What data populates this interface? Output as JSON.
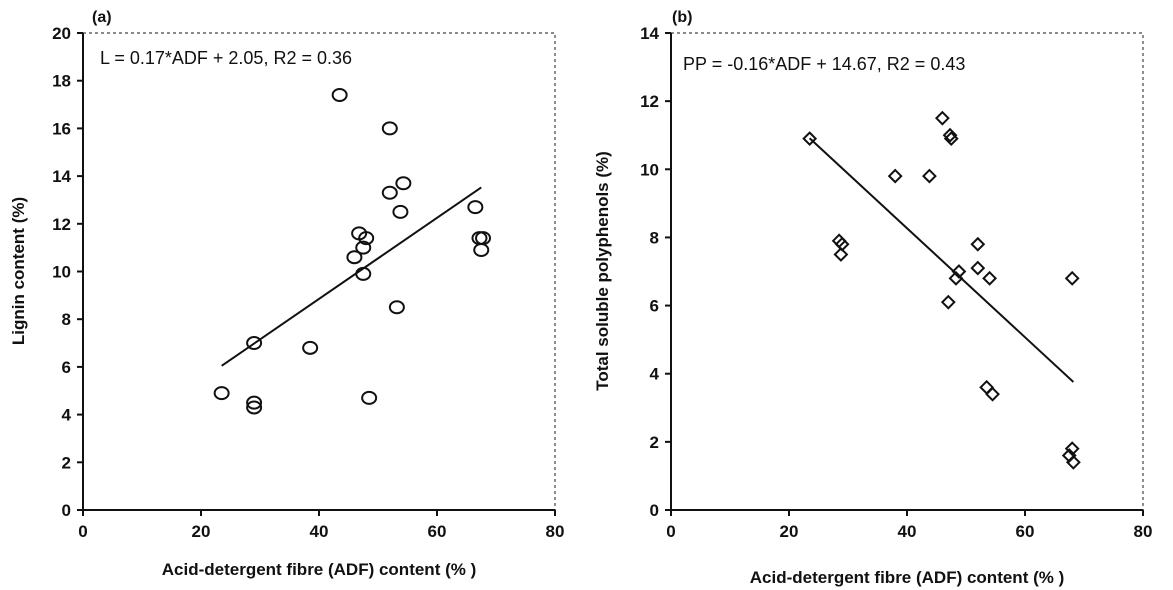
{
  "chart_data": [
    {
      "type": "scatter",
      "panel_label": "(a)",
      "equation": "L = 0.17*ADF + 2.05, R2 = 0.36",
      "xlabel": "Acid-detergent fibre (ADF) content (% )",
      "ylabel": "Lignin content (%)",
      "xlim": [
        0,
        80
      ],
      "ylim": [
        0,
        20
      ],
      "xticks": [
        "0",
        "20",
        "40",
        "60",
        "80"
      ],
      "yticks": [
        "0",
        "2",
        "4",
        "6",
        "8",
        "10",
        "12",
        "14",
        "16",
        "18",
        "20"
      ],
      "marker": "circle",
      "grid": false,
      "series": [
        {
          "points": [
            [
              23.5,
              4.9
            ],
            [
              29,
              7.0
            ],
            [
              29,
              4.5
            ],
            [
              29,
              4.3
            ],
            [
              38.5,
              6.8
            ],
            [
              43.5,
              17.4
            ],
            [
              46,
              10.6
            ],
            [
              46.8,
              11.6
            ],
            [
              47.5,
              9.9
            ],
            [
              47.5,
              11.0
            ],
            [
              48,
              11.4
            ],
            [
              48.5,
              4.7
            ],
            [
              52,
              16.0
            ],
            [
              52,
              13.3
            ],
            [
              53.2,
              8.5
            ],
            [
              53.8,
              12.5
            ],
            [
              54.3,
              13.7
            ],
            [
              66.5,
              12.7
            ],
            [
              67.2,
              11.4
            ],
            [
              67.8,
              11.4
            ],
            [
              67.5,
              10.9
            ]
          ]
        }
      ],
      "fit": {
        "slope": 0.17,
        "intercept": 2.05,
        "x_range": [
          23.5,
          67.5
        ]
      }
    },
    {
      "type": "scatter",
      "panel_label": "(b)",
      "equation": "PP = -0.16*ADF + 14.67, R2 = 0.43",
      "xlabel": "Acid-detergent fibre (ADF) content (% )",
      "ylabel": "Total soluble polyphenols (%)",
      "xlim": [
        0,
        80
      ],
      "ylim": [
        0,
        14
      ],
      "xticks": [
        "0",
        "20",
        "40",
        "60",
        "80"
      ],
      "yticks": [
        "0",
        "2",
        "4",
        "6",
        "8",
        "10",
        "12",
        "14"
      ],
      "marker": "diamond",
      "grid": false,
      "series": [
        {
          "points": [
            [
              23.5,
              10.9
            ],
            [
              28.5,
              7.9
            ],
            [
              29,
              7.8
            ],
            [
              28.8,
              7.5
            ],
            [
              38,
              9.8
            ],
            [
              43.8,
              9.8
            ],
            [
              46,
              11.5
            ],
            [
              47.3,
              11.0
            ],
            [
              47.5,
              10.9
            ],
            [
              47,
              6.1
            ],
            [
              48.3,
              6.8
            ],
            [
              48.8,
              7.0
            ],
            [
              52,
              7.8
            ],
            [
              52,
              7.1
            ],
            [
              53.5,
              3.6
            ],
            [
              54,
              6.8
            ],
            [
              54.5,
              3.4
            ],
            [
              67.5,
              1.6
            ],
            [
              68,
              1.8
            ],
            [
              68.2,
              1.4
            ],
            [
              68,
              6.8
            ]
          ]
        }
      ],
      "fit": {
        "slope": -0.16,
        "intercept": 14.67,
        "x_range": [
          23.5,
          68.2
        ]
      }
    }
  ]
}
